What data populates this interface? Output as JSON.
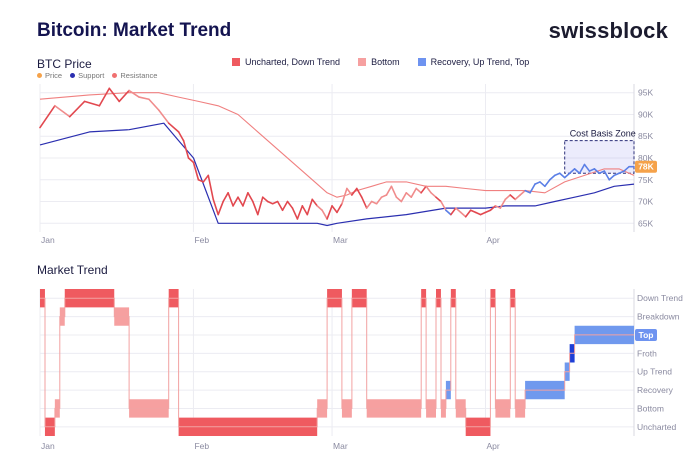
{
  "header": {
    "title": "Bitcoin: Market Trend",
    "brand": "swissblock"
  },
  "legend": [
    {
      "label": "Uncharted, Down Trend",
      "color": "#ef5a60"
    },
    {
      "label": "Bottom",
      "color": "#f6a0a0"
    },
    {
      "label": "Recovery, Up Trend, Top",
      "color": "#6e93f0"
    }
  ],
  "chart_data": [
    {
      "type": "line",
      "title": "BTC Price",
      "x_ticks": [
        "Jan",
        "Feb",
        "Mar",
        "Apr"
      ],
      "x_tick_days": [
        0,
        31,
        59,
        90
      ],
      "ylim": [
        63000,
        97000
      ],
      "y_ticks": [
        "95K",
        "90K",
        "85K",
        "80K",
        "75K",
        "70K",
        "65K"
      ],
      "y_tick_values": [
        95000,
        90000,
        85000,
        80000,
        75000,
        70000,
        65000
      ],
      "series_legend": [
        {
          "name": "Price",
          "color": "#f5a24a"
        },
        {
          "name": "Support",
          "color": "#2b2fb0"
        },
        {
          "name": "Resistance",
          "color": "#f07070"
        }
      ],
      "annotation": {
        "label": "Cost Basis Zone",
        "y_range": [
          76500,
          84000
        ],
        "day_range": [
          106,
          120
        ]
      },
      "current_price_label": "78K",
      "price": [
        [
          0,
          87000
        ],
        [
          3,
          92000
        ],
        [
          6,
          89500
        ],
        [
          9,
          93000
        ],
        [
          12,
          92000
        ],
        [
          14,
          96000
        ],
        [
          16,
          93000
        ],
        [
          18,
          95500
        ],
        [
          20,
          94000
        ],
        [
          22,
          93500
        ],
        [
          24,
          91000
        ],
        [
          26,
          88000
        ],
        [
          28,
          86000
        ],
        [
          29,
          84000
        ],
        [
          30,
          80000
        ],
        [
          31,
          79000
        ],
        [
          32,
          75000
        ],
        [
          33,
          74500
        ],
        [
          34,
          76000
        ],
        [
          35,
          70500
        ],
        [
          36,
          67000
        ],
        [
          37,
          70000
        ],
        [
          38,
          72000
        ],
        [
          39,
          69000
        ],
        [
          40,
          71000
        ],
        [
          41,
          69000
        ],
        [
          42,
          72000
        ],
        [
          43,
          70000
        ],
        [
          44,
          67000
        ],
        [
          45,
          71000
        ],
        [
          46,
          70000
        ],
        [
          47,
          69500
        ],
        [
          48,
          70000
        ],
        [
          49,
          68000
        ],
        [
          50,
          70000
        ],
        [
          51,
          68500
        ],
        [
          52,
          66000
        ],
        [
          53,
          69000
        ],
        [
          54,
          67000
        ],
        [
          55,
          70500
        ],
        [
          56,
          69000
        ],
        [
          57,
          68000
        ],
        [
          58,
          66000
        ],
        [
          59,
          69000
        ],
        [
          60,
          67500
        ],
        [
          61,
          69500
        ],
        [
          62,
          73000
        ],
        [
          63,
          71500
        ],
        [
          64,
          73000
        ],
        [
          65,
          71000
        ],
        [
          66,
          68500
        ],
        [
          67,
          70000
        ],
        [
          68,
          69500
        ],
        [
          69,
          71000
        ],
        [
          70,
          71500
        ],
        [
          71,
          73500
        ],
        [
          72,
          71000
        ],
        [
          73,
          70000
        ],
        [
          74,
          72000
        ],
        [
          75,
          71000
        ],
        [
          76,
          73000
        ],
        [
          77,
          72000
        ],
        [
          78,
          73500
        ],
        [
          79,
          72000
        ],
        [
          80,
          71000
        ],
        [
          81,
          70000
        ],
        [
          82,
          68000
        ],
        [
          83,
          67000
        ],
        [
          84,
          68500
        ],
        [
          85,
          67500
        ],
        [
          86,
          66500
        ],
        [
          87,
          68000
        ],
        [
          88,
          67500
        ],
        [
          89,
          67000
        ],
        [
          90,
          67500
        ],
        [
          91,
          68000
        ],
        [
          92,
          69000
        ],
        [
          93,
          68500
        ],
        [
          94,
          70500
        ],
        [
          95,
          71500
        ],
        [
          96,
          70500
        ],
        [
          97,
          71500
        ],
        [
          98,
          72500
        ],
        [
          99,
          72000
        ],
        [
          100,
          74000
        ],
        [
          101,
          74500
        ],
        [
          102,
          73500
        ],
        [
          103,
          75000
        ],
        [
          104,
          76000
        ],
        [
          105,
          76500
        ],
        [
          106,
          75500
        ],
        [
          107,
          76500
        ],
        [
          108,
          77500
        ],
        [
          109,
          76500
        ],
        [
          110,
          78500
        ],
        [
          111,
          77000
        ],
        [
          112,
          77500
        ],
        [
          113,
          76500
        ],
        [
          114,
          77000
        ],
        [
          115,
          75000
        ],
        [
          116,
          76000
        ],
        [
          117,
          76500
        ],
        [
          118,
          77000
        ],
        [
          119,
          78000
        ],
        [
          120,
          78000
        ]
      ],
      "support": [
        [
          0,
          83000
        ],
        [
          10,
          86000
        ],
        [
          18,
          86500
        ],
        [
          25,
          88000
        ],
        [
          28,
          84000
        ],
        [
          31,
          80000
        ],
        [
          33,
          74000
        ],
        [
          36,
          65000
        ],
        [
          42,
          65000
        ],
        [
          56,
          65000
        ],
        [
          58,
          64500
        ],
        [
          60,
          65000
        ],
        [
          66,
          66000
        ],
        [
          74,
          67000
        ],
        [
          82,
          68500
        ],
        [
          86,
          68500
        ],
        [
          90,
          68500
        ],
        [
          94,
          69000
        ],
        [
          100,
          69000
        ],
        [
          104,
          70000
        ],
        [
          108,
          71000
        ],
        [
          112,
          72000
        ],
        [
          116,
          73500
        ],
        [
          120,
          74000
        ]
      ],
      "resistance": [
        [
          0,
          93500
        ],
        [
          10,
          94500
        ],
        [
          18,
          95000
        ],
        [
          24,
          95000
        ],
        [
          28,
          94000
        ],
        [
          32,
          93000
        ],
        [
          36,
          92000
        ],
        [
          40,
          90000
        ],
        [
          44,
          86000
        ],
        [
          48,
          82000
        ],
        [
          52,
          78000
        ],
        [
          56,
          74000
        ],
        [
          58,
          72000
        ],
        [
          60,
          71000
        ],
        [
          62,
          71500
        ],
        [
          64,
          72500
        ],
        [
          67,
          73500
        ],
        [
          70,
          74500
        ],
        [
          74,
          74500
        ],
        [
          78,
          73500
        ],
        [
          82,
          73500
        ],
        [
          86,
          73000
        ],
        [
          90,
          72500
        ],
        [
          94,
          72500
        ],
        [
          98,
          72500
        ],
        [
          102,
          72000
        ],
        [
          106,
          74500
        ],
        [
          110,
          76000
        ],
        [
          114,
          77500
        ],
        [
          117,
          77500
        ],
        [
          120,
          76000
        ]
      ]
    },
    {
      "type": "step",
      "title": "Market Trend",
      "x_ticks": [
        "Jan",
        "Feb",
        "Mar",
        "Apr"
      ],
      "x_tick_days": [
        0,
        31,
        59,
        90
      ],
      "levels": [
        "Down Trend",
        "Breakdown",
        "Top",
        "Froth",
        "Up Trend",
        "Recovery",
        "Bottom",
        "Uncharted"
      ],
      "level_values": [
        7,
        6,
        5,
        4,
        3,
        2,
        1,
        0
      ],
      "highlighted_level": "Top",
      "segments": [
        {
          "start": 0,
          "end": 1,
          "level": 7
        },
        {
          "start": 1,
          "end": 3,
          "level": 0
        },
        {
          "start": 3,
          "end": 4,
          "level": 1
        },
        {
          "start": 4,
          "end": 5,
          "level": 6
        },
        {
          "start": 5,
          "end": 15,
          "level": 7
        },
        {
          "start": 15,
          "end": 18,
          "level": 6
        },
        {
          "start": 18,
          "end": 26,
          "level": 1
        },
        {
          "start": 26,
          "end": 28,
          "level": 7
        },
        {
          "start": 28,
          "end": 56,
          "level": 0
        },
        {
          "start": 56,
          "end": 58,
          "level": 1
        },
        {
          "start": 58,
          "end": 61,
          "level": 7
        },
        {
          "start": 61,
          "end": 63,
          "level": 1
        },
        {
          "start": 63,
          "end": 66,
          "level": 7
        },
        {
          "start": 66,
          "end": 77,
          "level": 1
        },
        {
          "start": 77,
          "end": 78,
          "level": 7
        },
        {
          "start": 78,
          "end": 80,
          "level": 1
        },
        {
          "start": 80,
          "end": 81,
          "level": 7
        },
        {
          "start": 81,
          "end": 82,
          "level": 1
        },
        {
          "start": 82,
          "end": 83,
          "level": 2
        },
        {
          "start": 83,
          "end": 84,
          "level": 7
        },
        {
          "start": 84,
          "end": 86,
          "level": 1
        },
        {
          "start": 86,
          "end": 91,
          "level": 0
        },
        {
          "start": 91,
          "end": 92,
          "level": 7
        },
        {
          "start": 92,
          "end": 95,
          "level": 1
        },
        {
          "start": 95,
          "end": 96,
          "level": 7
        },
        {
          "start": 96,
          "end": 98,
          "level": 1
        },
        {
          "start": 98,
          "end": 106,
          "level": 2
        },
        {
          "start": 106,
          "end": 107,
          "level": 3
        },
        {
          "start": 107,
          "end": 108,
          "level": 4
        },
        {
          "start": 108,
          "end": 120,
          "level": 5
        }
      ]
    }
  ]
}
